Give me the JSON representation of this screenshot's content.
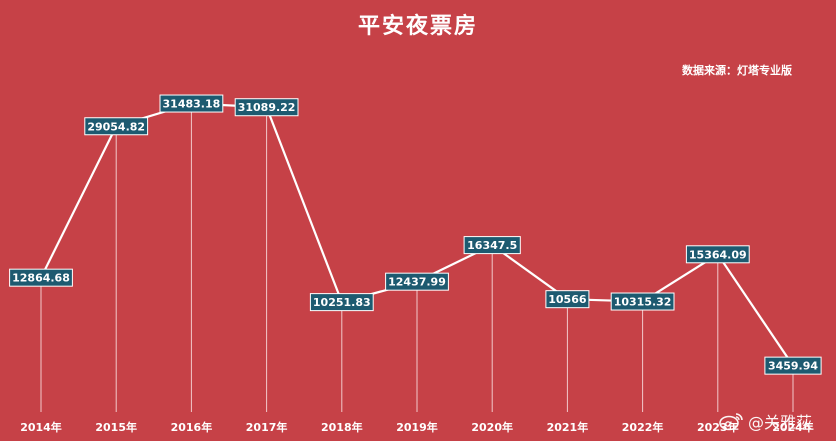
{
  "chart_data": {
    "type": "line",
    "title": "平安夜票房",
    "source": "数据来源：灯塔专业版",
    "categories": [
      "2014年",
      "2015年",
      "2016年",
      "2017年",
      "2018年",
      "2019年",
      "2020年",
      "2021年",
      "2022年",
      "2023年",
      "2024年"
    ],
    "values": [
      12864.68,
      29054.82,
      31483.18,
      31089.22,
      10251.83,
      12437.99,
      16347.5,
      10566,
      10315.32,
      15364.09,
      3459.94
    ],
    "value_labels": [
      "12864.68",
      "29054.82",
      "31483.18",
      "31089.22",
      "10251.83",
      "12437.99",
      "16347.5",
      "10566",
      "10315.32",
      "15364.09",
      "3459.94"
    ],
    "ylim": [
      0,
      34000
    ],
    "grid": false,
    "colors": {
      "background": "#c64147",
      "line": "#ffffff",
      "label_box": "#1d5a70",
      "label_text": "#ffffff",
      "drop_line": "#f2c9cb"
    }
  },
  "watermark": {
    "icon": "weibo-icon",
    "text": "@关雅荻"
  }
}
